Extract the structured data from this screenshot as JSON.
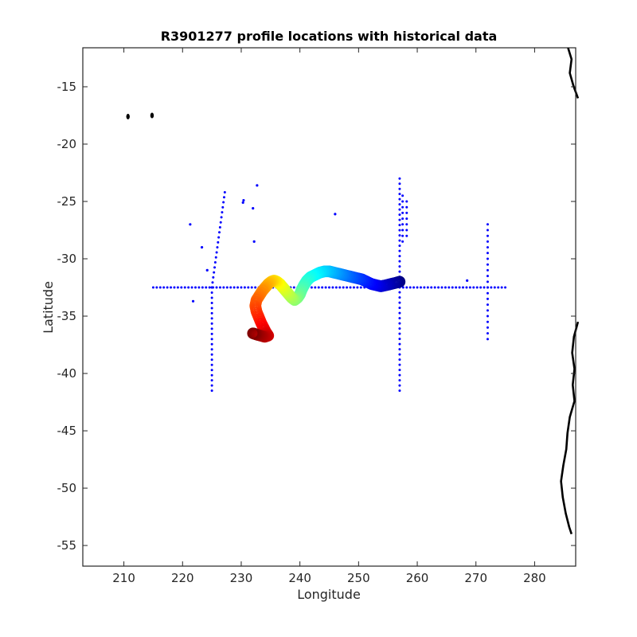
{
  "chart_data": {
    "type": "scatter",
    "title": "R3901277 profile locations with historical data",
    "xlabel": "Longitude",
    "ylabel": "Latitude",
    "xlim": [
      203,
      287
    ],
    "ylim": [
      -56.8,
      -11.6
    ],
    "xticks": [
      210,
      220,
      230,
      240,
      250,
      260,
      270,
      280
    ],
    "yticks": [
      -15,
      -20,
      -25,
      -30,
      -35,
      -40,
      -45,
      -50,
      -55
    ],
    "grid": false,
    "colors": {
      "historical": "#0000ff",
      "coastline": "#000000",
      "profile_colormap": "jet"
    },
    "historical_profiles": {
      "marker": "dot",
      "line_segments": [
        {
          "from": [
            215,
            -32.5
          ],
          "to": [
            275,
            -32.5
          ],
          "spacing": 0.6
        },
        {
          "from": [
            225,
            -32.5
          ],
          "to": [
            225,
            -41.5
          ],
          "spacing": 0.45
        },
        {
          "from": [
            225,
            -32.5
          ],
          "to": [
            227.2,
            -24.2
          ],
          "spacing": 0.45
        },
        {
          "from": [
            257,
            -23
          ],
          "to": [
            257,
            -41.5
          ],
          "spacing": 0.45
        },
        {
          "from": [
            257.5,
            -24.5
          ],
          "to": [
            257.5,
            -28.5
          ],
          "spacing": 0.5
        },
        {
          "from": [
            258.2,
            -25
          ],
          "to": [
            258.2,
            -28
          ],
          "spacing": 0.5
        },
        {
          "from": [
            272,
            -27
          ],
          "to": [
            272,
            -37
          ],
          "spacing": 0.5
        }
      ],
      "points": [
        [
          221.3,
          -27
        ],
        [
          223.3,
          -29
        ],
        [
          224.2,
          -31
        ],
        [
          221.8,
          -33.7
        ],
        [
          232,
          -25.6
        ],
        [
          232.7,
          -23.6
        ],
        [
          232.2,
          -28.5
        ],
        [
          246,
          -26.1
        ],
        [
          268.5,
          -31.9
        ],
        [
          230.3,
          -25.1
        ],
        [
          230.4,
          -24.9
        ]
      ]
    },
    "float_profiles": {
      "marker": "circle",
      "color_by": "cycle",
      "track": [
        [
          257,
          -32.0
        ],
        [
          256.3,
          -32.1
        ],
        [
          255.5,
          -32.2
        ],
        [
          254.7,
          -32.3
        ],
        [
          253.8,
          -32.4
        ],
        [
          253.0,
          -32.3
        ],
        [
          252.2,
          -32.2
        ],
        [
          251.4,
          -32.0
        ],
        [
          250.6,
          -31.8
        ],
        [
          249.8,
          -31.7
        ],
        [
          249.0,
          -31.6
        ],
        [
          248.2,
          -31.5
        ],
        [
          247.4,
          -31.4
        ],
        [
          246.6,
          -31.3
        ],
        [
          245.8,
          -31.2
        ],
        [
          245.0,
          -31.1
        ],
        [
          244.2,
          -31.1
        ],
        [
          243.4,
          -31.2
        ],
        [
          242.6,
          -31.4
        ],
        [
          241.8,
          -31.6
        ],
        [
          241.2,
          -31.9
        ],
        [
          240.7,
          -32.3
        ],
        [
          240.3,
          -32.7
        ],
        [
          240.0,
          -33.1
        ],
        [
          239.6,
          -33.4
        ],
        [
          239.1,
          -33.6
        ],
        [
          238.6,
          -33.4
        ],
        [
          238.1,
          -33.1
        ],
        [
          237.6,
          -32.8
        ],
        [
          237.1,
          -32.5
        ],
        [
          236.6,
          -32.2
        ],
        [
          236.1,
          -32.0
        ],
        [
          235.6,
          -31.9
        ],
        [
          235.1,
          -32.0
        ],
        [
          234.6,
          -32.2
        ],
        [
          234.1,
          -32.5
        ],
        [
          233.6,
          -32.8
        ],
        [
          233.1,
          -33.2
        ],
        [
          232.6,
          -33.6
        ],
        [
          232.4,
          -34.1
        ],
        [
          232.6,
          -34.6
        ],
        [
          233.0,
          -35.1
        ],
        [
          233.4,
          -35.6
        ],
        [
          233.8,
          -36.0
        ],
        [
          234.2,
          -36.4
        ],
        [
          234.6,
          -36.7
        ],
        [
          234.0,
          -36.8
        ],
        [
          233.3,
          -36.7
        ],
        [
          232.6,
          -36.6
        ],
        [
          232.0,
          -36.5
        ]
      ]
    },
    "coastline": {
      "segments": [
        [
          [
            285.7,
            -11.6
          ],
          [
            286.3,
            -12.6
          ],
          [
            286.0,
            -13.8
          ],
          [
            286.6,
            -14.9
          ],
          [
            287.4,
            -16.0
          ]
        ],
        [
          [
            287.4,
            -35.5
          ],
          [
            286.7,
            -36.8
          ],
          [
            286.4,
            -38.2
          ],
          [
            286.8,
            -39.6
          ],
          [
            286.5,
            -41.0
          ],
          [
            286.8,
            -42.4
          ],
          [
            286.0,
            -43.8
          ],
          [
            285.6,
            -45.2
          ],
          [
            285.4,
            -46.6
          ],
          [
            284.9,
            -48.0
          ],
          [
            284.5,
            -49.4
          ],
          [
            284.8,
            -50.8
          ],
          [
            285.3,
            -52.2
          ],
          [
            285.9,
            -53.4
          ],
          [
            286.3,
            -54.0
          ]
        ]
      ],
      "islands": [
        [
          210.7,
          -17.6
        ],
        [
          214.8,
          -17.5
        ]
      ]
    }
  }
}
